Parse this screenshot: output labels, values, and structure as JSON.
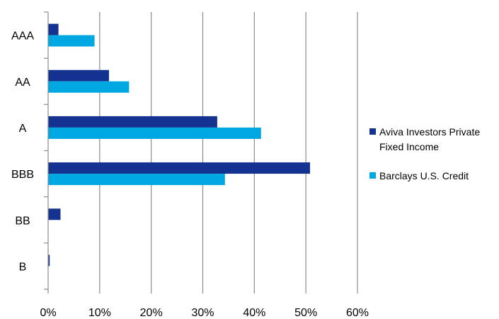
{
  "chart_data": {
    "type": "bar",
    "orientation": "horizontal",
    "title": "",
    "xlabel": "",
    "ylabel": "",
    "categories": [
      "AAA",
      "AA",
      "A",
      "BBB",
      "BB",
      "B"
    ],
    "series": [
      {
        "name": "Aviva Investors Private Fixed Income",
        "values": [
          2.0,
          11.8,
          32.8,
          50.8,
          2.4,
          0.3
        ],
        "color": "#143391"
      },
      {
        "name": "Barclays U.S. Credit",
        "values": [
          9.0,
          15.7,
          41.3,
          34.3,
          0.0,
          0.0
        ],
        "color": "#00a8e1"
      }
    ],
    "xlim": [
      0,
      60
    ],
    "x_ticks": [
      0,
      10,
      20,
      30,
      40,
      50,
      60
    ],
    "x_tick_format": "percent",
    "x_tick_labels": [
      "0%",
      "10%",
      "20%",
      "30%",
      "40%",
      "50%",
      "60%"
    ],
    "grid": "vertical",
    "legend_position": "right"
  },
  "legend": {
    "items": [
      {
        "lines": [
          "Aviva Investors Private",
          "Fixed Income"
        ]
      },
      {
        "lines": [
          "Barclays U.S. Credit"
        ]
      }
    ]
  }
}
